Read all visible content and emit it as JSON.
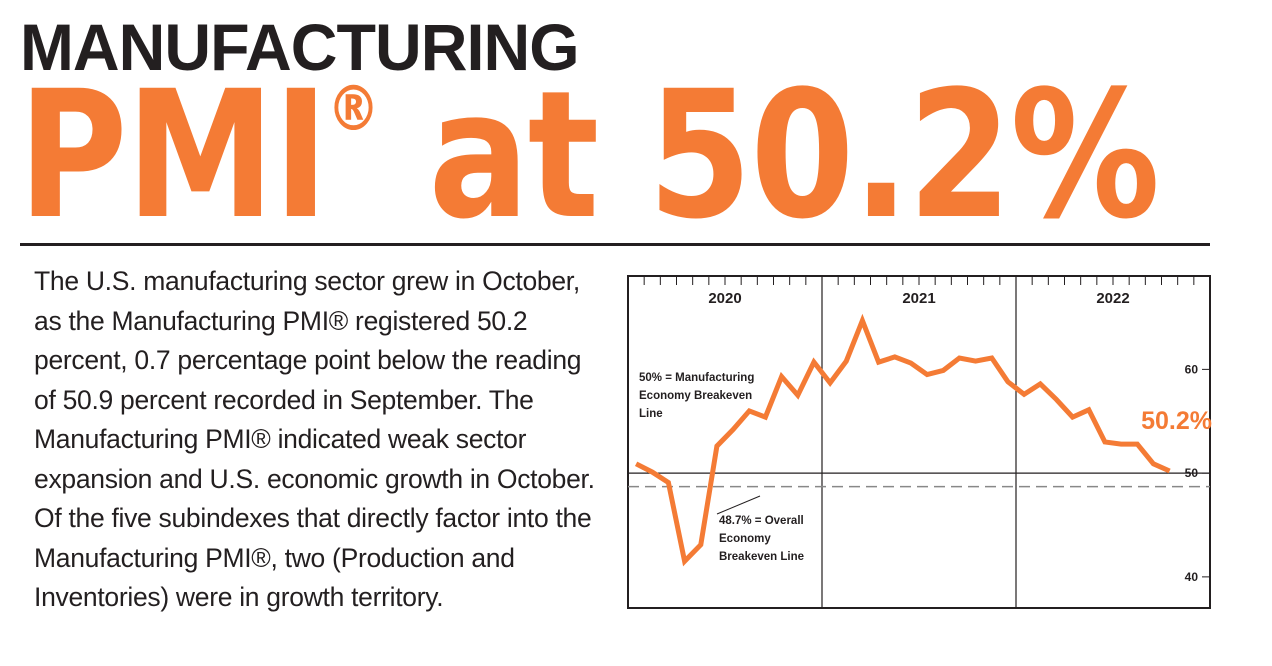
{
  "headline": {
    "line1": "MANUFACTURING",
    "line2": "PMI",
    "registered": "®",
    "line2_rest": " at 50.2%"
  },
  "body_text": "The U.S. manufacturing sector grew in October, as the Manufacturing PMI® registered 50.2 percent, 0.7 percentage point below the reading of 50.9 percent recorded in September. The Manufacturing PMI® indicated weak sector expansion and U.S. economic growth in October. Of the five subindexes that directly factor into the Manufacturing PMI®, two (Production and Inventories) were in growth territory.",
  "colors": {
    "accent": "#f47b35",
    "text": "#231f20",
    "dashed": "#888888"
  },
  "chart_data": {
    "type": "line",
    "years": [
      "2020",
      "2021",
      "2022"
    ],
    "ylim": [
      37,
      69
    ],
    "yticks": [
      40,
      50,
      60
    ],
    "grid": false,
    "series": [
      {
        "values": [
          {
            "x": "2020-01",
            "y": 50.9
          },
          {
            "x": "2020-02",
            "y": 50.1
          },
          {
            "x": "2020-03",
            "y": 49.1
          },
          {
            "x": "2020-04",
            "y": 41.5
          },
          {
            "x": "2020-05",
            "y": 43.1
          },
          {
            "x": "2020-06",
            "y": 52.6
          },
          {
            "x": "2020-07",
            "y": 54.2
          },
          {
            "x": "2020-08",
            "y": 56.0
          },
          {
            "x": "2020-09",
            "y": 55.4
          },
          {
            "x": "2020-10",
            "y": 59.3
          },
          {
            "x": "2020-11",
            "y": 57.5
          },
          {
            "x": "2020-12",
            "y": 60.7
          },
          {
            "x": "2021-01",
            "y": 58.7
          },
          {
            "x": "2021-02",
            "y": 60.8
          },
          {
            "x": "2021-03",
            "y": 64.7
          },
          {
            "x": "2021-04",
            "y": 60.7
          },
          {
            "x": "2021-05",
            "y": 61.2
          },
          {
            "x": "2021-06",
            "y": 60.6
          },
          {
            "x": "2021-07",
            "y": 59.5
          },
          {
            "x": "2021-08",
            "y": 59.9
          },
          {
            "x": "2021-09",
            "y": 61.1
          },
          {
            "x": "2021-10",
            "y": 60.8
          },
          {
            "x": "2021-11",
            "y": 61.1
          },
          {
            "x": "2021-12",
            "y": 58.8
          },
          {
            "x": "2022-01",
            "y": 57.6
          },
          {
            "x": "2022-02",
            "y": 58.6
          },
          {
            "x": "2022-03",
            "y": 57.1
          },
          {
            "x": "2022-04",
            "y": 55.4
          },
          {
            "x": "2022-05",
            "y": 56.1
          },
          {
            "x": "2022-06",
            "y": 53.0
          },
          {
            "x": "2022-07",
            "y": 52.8
          },
          {
            "x": "2022-08",
            "y": 52.8
          },
          {
            "x": "2022-09",
            "y": 50.9
          },
          {
            "x": "2022-10",
            "y": 50.2
          }
        ]
      }
    ],
    "reference_lines": [
      {
        "y": 50,
        "style": "solid"
      },
      {
        "y": 48.7,
        "style": "dashed"
      }
    ],
    "annotations": {
      "breakeven_line1": "50% = Manufacturing",
      "breakeven_line2": "Economy Breakeven",
      "breakeven_line3": "Line",
      "overall_line1": "48.7% = Overall",
      "overall_line2": "Economy",
      "overall_line3": "Breakeven Line",
      "last_value_label": "50.2%"
    }
  }
}
